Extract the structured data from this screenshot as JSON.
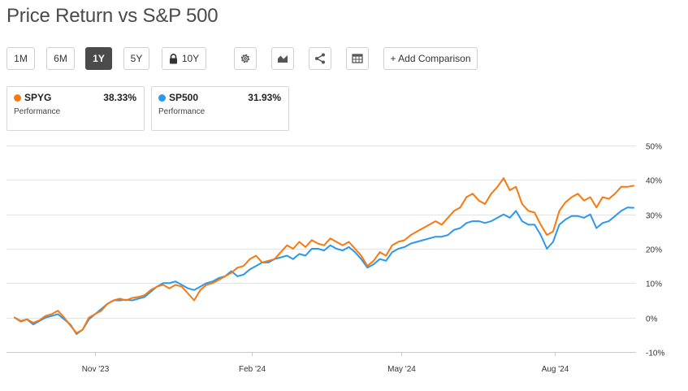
{
  "title": "Price Return vs S&P 500",
  "toolbar": {
    "ranges": [
      {
        "label": "1M",
        "active": false
      },
      {
        "label": "6M",
        "active": false
      },
      {
        "label": "1Y",
        "active": true
      },
      {
        "label": "5Y",
        "active": false
      },
      {
        "label": "10Y",
        "active": false,
        "icon": "lock-icon"
      }
    ],
    "icons": [
      "settings-icon",
      "chart-type-icon",
      "share-icon",
      "table-icon"
    ],
    "comparison_label": "+ Add Comparison"
  },
  "cards": [
    {
      "symbol": "SPYG",
      "value": "38.33%",
      "caption": "Performance",
      "color": "#f7790f"
    },
    {
      "symbol": "SP500",
      "value": "31.93%",
      "caption": "Performance",
      "color": "#2b98ee"
    }
  ],
  "chart_data": {
    "type": "line",
    "title": "Price Return vs S&P 500",
    "ylim": [
      -10,
      50
    ],
    "yticks": [
      -10,
      0,
      10,
      20,
      30,
      40,
      50
    ],
    "ytick_labels": [
      "-10%",
      "0%",
      "10%",
      "20%",
      "30%",
      "40%",
      "50%"
    ],
    "grid": true,
    "x_range": [
      0,
      100
    ],
    "x_ticks": [
      {
        "x": 13,
        "label": "Nov '23"
      },
      {
        "x": 38.3,
        "label": "Feb '24"
      },
      {
        "x": 62.5,
        "label": "May '24"
      },
      {
        "x": 87.3,
        "label": "Aug '24"
      }
    ],
    "series": [
      {
        "name": "SPYG",
        "color": "#f7790f",
        "points": [
          [
            0,
            0
          ],
          [
            1,
            -1.2
          ],
          [
            2,
            -0.5
          ],
          [
            3,
            -1.5
          ],
          [
            4,
            -0.8
          ],
          [
            5,
            0.5
          ],
          [
            6,
            1
          ],
          [
            7,
            2
          ],
          [
            8,
            0
          ],
          [
            9,
            -2.3
          ],
          [
            10,
            -4.5
          ],
          [
            11,
            -3.5
          ],
          [
            12,
            0
          ],
          [
            13,
            1
          ],
          [
            14,
            2
          ],
          [
            15,
            4
          ],
          [
            16,
            5
          ],
          [
            17,
            5.5
          ],
          [
            18,
            5
          ],
          [
            19,
            5.7
          ],
          [
            20,
            6
          ],
          [
            21,
            6.5
          ],
          [
            22,
            8
          ],
          [
            23,
            9
          ],
          [
            24,
            9.5
          ],
          [
            25,
            8.5
          ],
          [
            26,
            9.5
          ],
          [
            27,
            9
          ],
          [
            28,
            7
          ],
          [
            29,
            5
          ],
          [
            30,
            8
          ],
          [
            31,
            9.5
          ],
          [
            32,
            10
          ],
          [
            33,
            11
          ],
          [
            34,
            12
          ],
          [
            35,
            13
          ],
          [
            36,
            14.5
          ],
          [
            37,
            15
          ],
          [
            38,
            17
          ],
          [
            39,
            18
          ],
          [
            40,
            16
          ],
          [
            41,
            16.5
          ],
          [
            42,
            17
          ],
          [
            43,
            19
          ],
          [
            44,
            21
          ],
          [
            45,
            20
          ],
          [
            46,
            22
          ],
          [
            47,
            20.5
          ],
          [
            48,
            22.5
          ],
          [
            49,
            21.5
          ],
          [
            50,
            21
          ],
          [
            51,
            23
          ],
          [
            52,
            22
          ],
          [
            53,
            21
          ],
          [
            54,
            22
          ],
          [
            55,
            20
          ],
          [
            56,
            18
          ],
          [
            57,
            15
          ],
          [
            58,
            16.5
          ],
          [
            59,
            19
          ],
          [
            60,
            18
          ],
          [
            61,
            21
          ],
          [
            62,
            22
          ],
          [
            63,
            22.5
          ],
          [
            64,
            24
          ],
          [
            65,
            25
          ],
          [
            66,
            26
          ],
          [
            67,
            27
          ],
          [
            68,
            28
          ],
          [
            69,
            27
          ],
          [
            70,
            29
          ],
          [
            71,
            31
          ],
          [
            72,
            32
          ],
          [
            73,
            35
          ],
          [
            74,
            36
          ],
          [
            75,
            34
          ],
          [
            76,
            33
          ],
          [
            77,
            36
          ],
          [
            78,
            38
          ],
          [
            79,
            40.5
          ],
          [
            80,
            37
          ],
          [
            81,
            38
          ],
          [
            82,
            33
          ],
          [
            83,
            31
          ],
          [
            84,
            30.5
          ],
          [
            85,
            27
          ],
          [
            86,
            24
          ],
          [
            87,
            25
          ],
          [
            88,
            31
          ],
          [
            89,
            33.5
          ],
          [
            90,
            35
          ],
          [
            91,
            36
          ],
          [
            92,
            34
          ],
          [
            93,
            35
          ],
          [
            94,
            32
          ],
          [
            95,
            35
          ],
          [
            96,
            34.5
          ],
          [
            97,
            36
          ],
          [
            98,
            38
          ],
          [
            99,
            38
          ],
          [
            100,
            38.3
          ]
        ]
      },
      {
        "name": "SP500",
        "color": "#2b98ee",
        "points": [
          [
            0,
            0
          ],
          [
            1,
            -1
          ],
          [
            2,
            -0.5
          ],
          [
            3,
            -2
          ],
          [
            4,
            -1
          ],
          [
            5,
            0
          ],
          [
            6,
            0.5
          ],
          [
            7,
            1
          ],
          [
            8,
            -0.5
          ],
          [
            9,
            -2
          ],
          [
            10,
            -4.8
          ],
          [
            11,
            -3.5
          ],
          [
            12,
            -0.5
          ],
          [
            13,
            1
          ],
          [
            14,
            2.5
          ],
          [
            15,
            4
          ],
          [
            16,
            5
          ],
          [
            17,
            5
          ],
          [
            18,
            5.2
          ],
          [
            19,
            5
          ],
          [
            20,
            5.5
          ],
          [
            21,
            6
          ],
          [
            22,
            7.5
          ],
          [
            23,
            9
          ],
          [
            24,
            10
          ],
          [
            25,
            10
          ],
          [
            26,
            10.5
          ],
          [
            27,
            9.5
          ],
          [
            28,
            8.5
          ],
          [
            29,
            8
          ],
          [
            30,
            9
          ],
          [
            31,
            10
          ],
          [
            32,
            10.5
          ],
          [
            33,
            11.5
          ],
          [
            34,
            12
          ],
          [
            35,
            13.5
          ],
          [
            36,
            12
          ],
          [
            37,
            12.5
          ],
          [
            38,
            14
          ],
          [
            39,
            15
          ],
          [
            40,
            16
          ],
          [
            41,
            16
          ],
          [
            42,
            17
          ],
          [
            43,
            17.5
          ],
          [
            44,
            18
          ],
          [
            45,
            17
          ],
          [
            46,
            18.5
          ],
          [
            47,
            18
          ],
          [
            48,
            20
          ],
          [
            49,
            20
          ],
          [
            50,
            19.5
          ],
          [
            51,
            21
          ],
          [
            52,
            20
          ],
          [
            53,
            19.5
          ],
          [
            54,
            20.5
          ],
          [
            55,
            19
          ],
          [
            56,
            17
          ],
          [
            57,
            14.5
          ],
          [
            58,
            15.5
          ],
          [
            59,
            17
          ],
          [
            60,
            16.5
          ],
          [
            61,
            19
          ],
          [
            62,
            20
          ],
          [
            63,
            20.5
          ],
          [
            64,
            21.5
          ],
          [
            65,
            22
          ],
          [
            66,
            22.5
          ],
          [
            67,
            23
          ],
          [
            68,
            23.5
          ],
          [
            69,
            23.5
          ],
          [
            70,
            24
          ],
          [
            71,
            25.5
          ],
          [
            72,
            26
          ],
          [
            73,
            27.5
          ],
          [
            74,
            28
          ],
          [
            75,
            28
          ],
          [
            76,
            27.5
          ],
          [
            77,
            28
          ],
          [
            78,
            29
          ],
          [
            79,
            30
          ],
          [
            80,
            29
          ],
          [
            81,
            31
          ],
          [
            82,
            28
          ],
          [
            83,
            27
          ],
          [
            84,
            27
          ],
          [
            85,
            24
          ],
          [
            86,
            20
          ],
          [
            87,
            22
          ],
          [
            88,
            27
          ],
          [
            89,
            28.5
          ],
          [
            90,
            29.5
          ],
          [
            91,
            29.5
          ],
          [
            92,
            29
          ],
          [
            93,
            30
          ],
          [
            94,
            26
          ],
          [
            95,
            27.5
          ],
          [
            96,
            28
          ],
          [
            97,
            29.5
          ],
          [
            98,
            31
          ],
          [
            99,
            32
          ],
          [
            100,
            31.9
          ]
        ]
      }
    ]
  }
}
